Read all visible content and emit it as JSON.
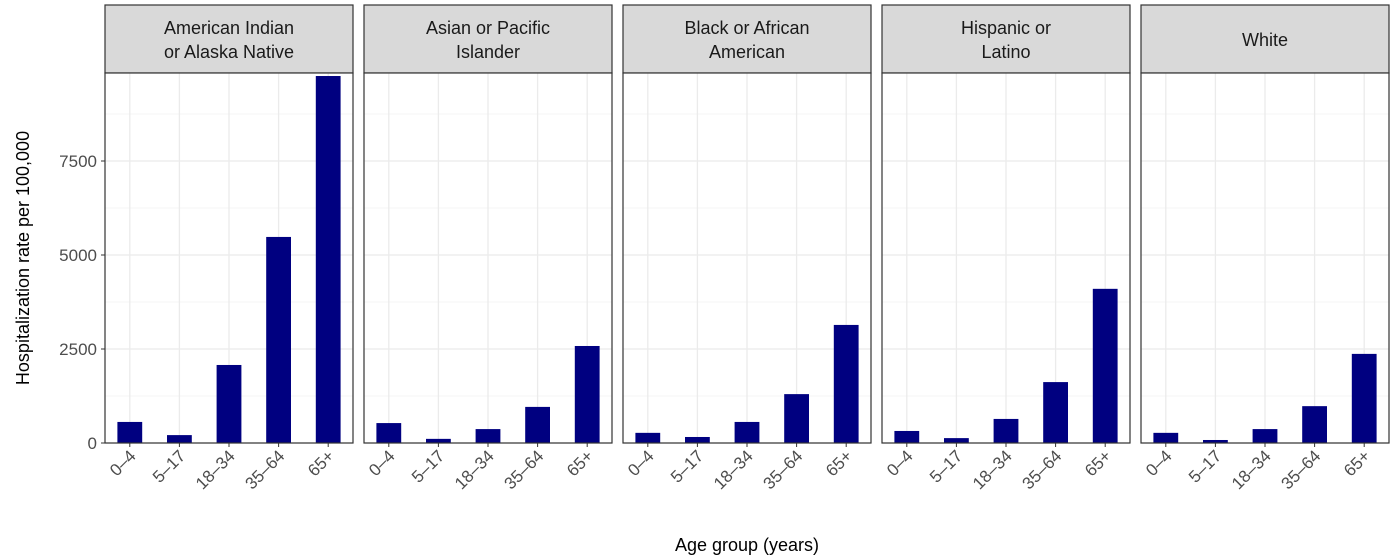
{
  "chart_data": {
    "type": "bar",
    "y_label": "Hospitalization rate per 100,000",
    "x_label": "Age group (years)",
    "categories": [
      "0–4",
      "5–17",
      "18–34",
      "35–64",
      "65+"
    ],
    "color": "#000080",
    "ylim": [
      0,
      9840
    ],
    "yticks": [
      0,
      2500,
      5000,
      7500
    ],
    "y_minor_ticks": [
      1250,
      3750,
      6250,
      8750
    ],
    "grid": true,
    "panels": [
      {
        "title": [
          "American Indian",
          "or Alaska Native"
        ],
        "values": [
          560,
          210,
          2075,
          5480,
          9760
        ]
      },
      {
        "title": [
          "Asian or Pacific",
          "Islander"
        ],
        "values": [
          530,
          110,
          370,
          960,
          2580
        ]
      },
      {
        "title": [
          "Black or African",
          "American"
        ],
        "values": [
          270,
          160,
          560,
          1300,
          3140
        ]
      },
      {
        "title": [
          "Hispanic or",
          "Latino"
        ],
        "values": [
          320,
          130,
          640,
          1620,
          4100
        ]
      },
      {
        "title": [
          "White"
        ],
        "values": [
          270,
          80,
          370,
          980,
          2370
        ]
      }
    ]
  }
}
